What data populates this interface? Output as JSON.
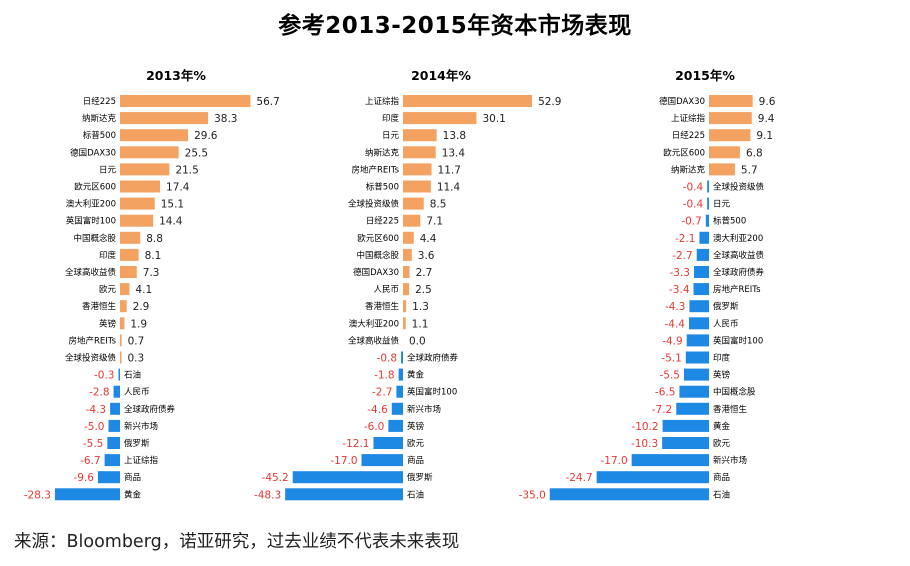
{
  "title": "参考2013-2015年资本市场表现",
  "source": "来源：Bloomberg，诺亚研究，过去业绩不代表未来表现",
  "colors": {
    "positive": "#f4a261",
    "negative": "#1e88e5",
    "negative_label": "#e53935"
  },
  "chart_data": [
    {
      "type": "bar",
      "orientation": "horizontal",
      "title": "2013年%",
      "categories": [
        "日经225",
        "纳斯达克",
        "标普500",
        "德国DAX30",
        "日元",
        "欧元区600",
        "澳大利亚200",
        "英国富时100",
        "中国概念股",
        "印度",
        "全球高收益债",
        "欧元",
        "香港恒生",
        "英镑",
        "房地产REITs",
        "全球投资级债",
        "石油",
        "人民币",
        "全球政府债券",
        "新兴市场",
        "俄罗斯",
        "上证综指",
        "商品",
        "黄金"
      ],
      "values": [
        56.7,
        38.3,
        29.6,
        25.5,
        21.5,
        17.4,
        15.1,
        14.4,
        8.8,
        8.1,
        7.3,
        4.1,
        2.9,
        1.9,
        0.7,
        0.3,
        -0.3,
        -2.8,
        -4.3,
        -5.0,
        -5.5,
        -6.7,
        -9.6,
        -28.3
      ]
    },
    {
      "type": "bar",
      "orientation": "horizontal",
      "title": "2014年%",
      "categories": [
        "上证综指",
        "印度",
        "日元",
        "纳斯达克",
        "房地产REITs",
        "标普500",
        "全球投资级债",
        "日经225",
        "欧元区600",
        "中国概念股",
        "德国DAX30",
        "人民币",
        "香港恒生",
        "澳大利亚200",
        "全球高收益债",
        "全球政府债券",
        "黄金",
        "英国富时100",
        "新兴市场",
        "英镑",
        "欧元",
        "商品",
        "俄罗斯",
        "石油"
      ],
      "values": [
        52.9,
        30.1,
        13.8,
        13.4,
        11.7,
        11.4,
        8.5,
        7.1,
        4.4,
        3.6,
        2.7,
        2.5,
        1.3,
        1.1,
        0.0,
        -0.8,
        -1.8,
        -2.7,
        -4.6,
        -6.0,
        -12.1,
        -17.0,
        -45.2,
        -48.3
      ]
    },
    {
      "type": "bar",
      "orientation": "horizontal",
      "title": "2015年%",
      "categories": [
        "德国DAX30",
        "上证综指",
        "日经225",
        "欧元区600",
        "纳斯达克",
        "全球投资级债",
        "日元",
        "标普500",
        "澳大利亚200",
        "全球高收益债",
        "全球政府债券",
        "房地产REITs",
        "俄罗斯",
        "人民币",
        "英国富时100",
        "印度",
        "英镑",
        "中国概念股",
        "香港恒生",
        "黄金",
        "欧元",
        "新兴市场",
        "商品",
        "石油"
      ],
      "values": [
        9.6,
        9.4,
        9.1,
        6.8,
        5.7,
        -0.4,
        -0.4,
        -0.7,
        -2.1,
        -2.7,
        -3.3,
        -3.4,
        -4.3,
        -4.4,
        -4.9,
        -5.1,
        -5.5,
        -6.5,
        -7.2,
        -10.2,
        -10.3,
        -17.0,
        -24.7,
        -35.0
      ]
    }
  ]
}
